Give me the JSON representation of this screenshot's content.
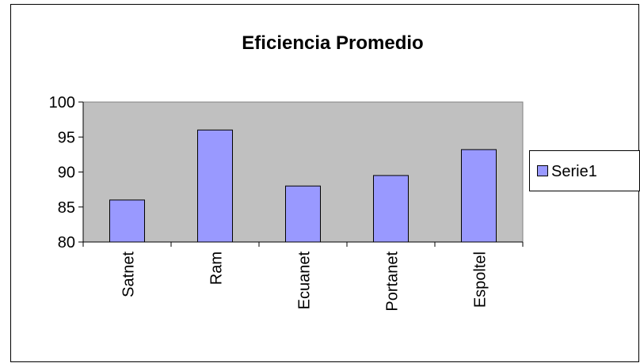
{
  "chart_data": {
    "type": "bar",
    "title": "Eficiencia Promedio",
    "categories": [
      "Satnet",
      "Ram",
      "Ecuanet",
      "Portanet",
      "Espoltel"
    ],
    "series": [
      {
        "name": "Serie1",
        "color": "#9999ff",
        "values": [
          86,
          96,
          88,
          89.5,
          93.2
        ]
      }
    ],
    "ylim": [
      80,
      100
    ],
    "yticks": [
      80,
      85,
      90,
      95,
      100
    ],
    "legend": "right",
    "plot_background": "#c0c0c0"
  }
}
